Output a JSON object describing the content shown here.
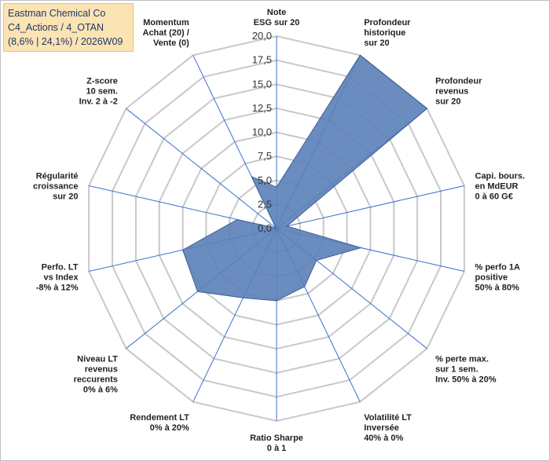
{
  "title_box": {
    "line1": "Eastman Chemical Co",
    "line2": "C4_Actions / 4_OTAN",
    "line3": "(8,6% | 24,1%) / 2026W09"
  },
  "chart_data": {
    "type": "radar",
    "rmin": 0,
    "rmax": 20,
    "ticks": [
      "0,0",
      "2,5",
      "5,0",
      "7,5",
      "10,0",
      "12,5",
      "15,0",
      "17,5",
      "20,0"
    ],
    "tick_values": [
      0,
      2.5,
      5,
      7.5,
      10,
      12.5,
      15,
      17.5,
      20
    ],
    "grid": true,
    "axes": [
      {
        "label": [
          "Note",
          "ESG sur 20"
        ],
        "value": 4.3
      },
      {
        "label": [
          "Profondeur",
          "historique",
          "sur 20"
        ],
        "value": 20
      },
      {
        "label": [
          "Profondeur",
          "revenus",
          "sur 20"
        ],
        "value": 20
      },
      {
        "label": [
          "Capi. bours.",
          "en MdEUR",
          "0 à 60 G€"
        ],
        "value": 1.1
      },
      {
        "label": [
          "% perfo 1A",
          "positive",
          "50% à 80%"
        ],
        "value": 9.0
      },
      {
        "label": [
          "% perte max.",
          "sur 1 sem.",
          "Inv. 50% à 20%"
        ],
        "value": 5.3
      },
      {
        "label": [
          "Volatilité LT",
          "Inversée",
          "40% à 0%"
        ],
        "value": 6.7
      },
      {
        "label": [
          "Ratio Sharpe",
          "0 à 1"
        ],
        "value": 7.5
      },
      {
        "label": [
          "Rendement LT",
          "0% à 20%"
        ],
        "value": 8.0
      },
      {
        "label": [
          "Niveau LT",
          "revenus",
          "reccurents",
          "0% à 6%"
        ],
        "value": 10.5
      },
      {
        "label": [
          "Perfo. LT",
          "vs Index",
          "-8% à 12%"
        ],
        "value": 10.0
      },
      {
        "label": [
          "Régularité",
          "croissance",
          "sur 20"
        ],
        "value": 4.2
      },
      {
        "label": [
          "Z-score",
          "10 sem.",
          "Inv. 2 à -2"
        ],
        "value": 0.1
      },
      {
        "label": [
          "Momentum",
          "Achat (20) /",
          "Vente (0)"
        ],
        "value": 6.0
      }
    ],
    "colors": {
      "fill": "#5b80b8",
      "stroke": "#3d5f95",
      "grid": "#c8c8c8",
      "axis": "#3a6fcf"
    }
  }
}
